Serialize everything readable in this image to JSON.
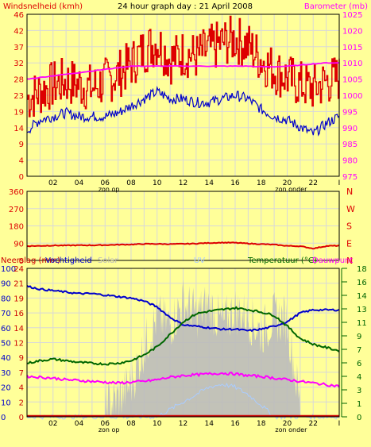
{
  "header": {
    "left_title": "Windsnelheid (kmh)",
    "center_title": "24 hour graph day : 21 April 2008",
    "right_title": "Barometer (mb)"
  },
  "colors": {
    "background": "#ffff99",
    "grid": "#d8d8d8",
    "wind": "#dd0000",
    "gust": "#0000cc",
    "barometer": "#ff00ff",
    "wind_direction": "#dd0000",
    "humidity": "#0000cc",
    "temperature": "#006600",
    "dewpoint": "#ff00ff",
    "solar": "#bbbbbb",
    "uv": "#aaccff",
    "rain": "#cc0000",
    "axis_green": "#006600",
    "direction_letters": "#dd0000"
  },
  "x_axis": {
    "ticks": [
      "02",
      "04",
      "06",
      "08",
      "10",
      "12",
      "14",
      "16",
      "18",
      "20",
      "22",
      "I"
    ],
    "zon_op": "zon op",
    "zon_onder": "zon onder"
  },
  "chart_data": [
    {
      "type": "line",
      "title": "Windsnelheid (kmh) / Barometer (mb)",
      "left_axis": {
        "label": "Windsnelheid (kmh)",
        "ticks": [
          "0",
          "4",
          "9",
          "14",
          "19",
          "23",
          "28",
          "32",
          "37",
          "42",
          "46"
        ],
        "ylim": [
          0,
          46
        ]
      },
      "right_axis": {
        "label": "Barometer (mb)",
        "ticks": [
          "975",
          "980",
          "985",
          "990",
          "995",
          "1000",
          "1005",
          "1010",
          "1015",
          "1020",
          "1025"
        ],
        "ylim": [
          975,
          1025
        ]
      },
      "x": [
        0,
        1,
        2,
        3,
        4,
        5,
        6,
        7,
        8,
        9,
        10,
        11,
        12,
        13,
        14,
        15,
        16,
        17,
        18,
        19,
        20,
        21,
        22,
        23,
        24
      ],
      "series": [
        {
          "name": "Windsnelheid",
          "axis": "left",
          "values": [
            22,
            24,
            26,
            27,
            26,
            25,
            27,
            29,
            32,
            36,
            38,
            33,
            35,
            34,
            36,
            38,
            39,
            37,
            33,
            30,
            28,
            26,
            25,
            27,
            28
          ]
        },
        {
          "name": "",
          "axis": "left",
          "values": [
            13,
            16,
            17,
            18,
            17,
            17,
            17,
            18,
            20,
            22,
            24,
            22,
            22,
            21,
            21,
            22,
            23,
            22,
            19,
            17,
            16,
            14,
            12,
            15,
            17
          ]
        },
        {
          "name": "Barometer",
          "axis": "right",
          "values": [
            1005,
            1005.5,
            1006,
            1006.5,
            1007,
            1007.5,
            1008,
            1008.5,
            1009,
            1009,
            1009,
            1009,
            1009,
            1009,
            1009,
            1009,
            1009,
            1009,
            1008.8,
            1008.8,
            1009,
            1009.3,
            1009.7,
            1010,
            1010
          ]
        }
      ]
    },
    {
      "type": "line",
      "title": "",
      "left_axis": {
        "ticks": [
          "0",
          "90",
          "180",
          "270",
          "360"
        ],
        "ylim": [
          0,
          360
        ]
      },
      "right_axis": {
        "ticks": [
          "N",
          "E",
          "S",
          "W",
          "N"
        ]
      },
      "x": [
        0,
        1,
        2,
        3,
        4,
        5,
        6,
        7,
        8,
        9,
        10,
        11,
        12,
        13,
        14,
        15,
        16,
        17,
        18,
        19,
        20,
        21,
        22,
        23,
        24
      ],
      "series": [
        {
          "name": "",
          "values": [
            75,
            76,
            78,
            78,
            79,
            79,
            80,
            82,
            83,
            86,
            86,
            85,
            86,
            88,
            91,
            93,
            92,
            88,
            85,
            82,
            76,
            74,
            62,
            75,
            77
          ]
        }
      ]
    },
    {
      "type": "line",
      "title": "",
      "labels": {
        "rain": "Neerslag (mm)",
        "humidity": "Vochtigheid",
        "solar": "Solar",
        "uv": "UV",
        "temperature": "Temperatuur (°C)",
        "dewpoint": "Dauwpunt"
      },
      "left_axis_humidity": {
        "ticks": [
          "0",
          "10",
          "20",
          "30",
          "40",
          "50",
          "60",
          "70",
          "80",
          "90",
          "100"
        ],
        "ylim": [
          0,
          100
        ]
      },
      "left_axis_rain": {
        "ticks": [
          "0",
          "2",
          "4",
          "7",
          "9",
          "12",
          "14",
          "16",
          "19",
          "21",
          "24"
        ]
      },
      "right_axis_temperature": {
        "ticks": [
          "0",
          "1",
          "3",
          "4",
          "6",
          "7",
          "9",
          "11",
          "13",
          "14",
          "16",
          "18"
        ],
        "ylim": [
          0,
          18
        ]
      },
      "x": [
        0,
        1,
        2,
        3,
        4,
        5,
        6,
        7,
        8,
        9,
        10,
        11,
        12,
        13,
        14,
        15,
        16,
        17,
        18,
        19,
        20,
        21,
        22,
        23,
        24
      ],
      "series": [
        {
          "name": "Vochtigheid",
          "axis": "left",
          "values": [
            88,
            86,
            85,
            84,
            83,
            83,
            82,
            81,
            80,
            78,
            74,
            67,
            62,
            61,
            60,
            59,
            59,
            58,
            59,
            61,
            64,
            70,
            72,
            72,
            72
          ]
        },
        {
          "name": "Temperatuur",
          "axis": "right",
          "values": [
            6.5,
            6.8,
            7.0,
            6.8,
            6.6,
            6.5,
            6.4,
            6.5,
            6.8,
            7.5,
            8.5,
            10,
            11.5,
            12.5,
            12.8,
            13,
            13.2,
            13,
            12.7,
            12.3,
            11,
            9.5,
            8.8,
            8.4,
            8.0
          ]
        },
        {
          "name": "Dauwpunt",
          "axis": "right",
          "values": [
            4.9,
            4.8,
            4.7,
            4.5,
            4.4,
            4.3,
            4.2,
            4.1,
            4.2,
            4.3,
            4.5,
            4.8,
            5.0,
            5.1,
            5.2,
            5.3,
            5.2,
            5.0,
            4.9,
            4.7,
            4.5,
            4.3,
            4.1,
            3.9,
            3.7
          ]
        },
        {
          "name": "Solar",
          "axis": "left",
          "values": [
            0,
            0,
            0,
            0,
            0,
            0,
            0,
            5,
            15,
            40,
            60,
            55,
            70,
            62,
            68,
            55,
            65,
            60,
            50,
            60,
            58,
            0,
            0,
            0,
            0
          ]
        },
        {
          "name": "UV",
          "axis": "left",
          "values": [
            0,
            0,
            0,
            0,
            0,
            0,
            0,
            0,
            0,
            0,
            0,
            5,
            10,
            15,
            20,
            22,
            20,
            15,
            8,
            0,
            0,
            0,
            0,
            0,
            0
          ]
        },
        {
          "name": "Neerslag",
          "axis": "left",
          "values": [
            0,
            0,
            0,
            0,
            0,
            0,
            0,
            0,
            0,
            0,
            0,
            0,
            0,
            0,
            0,
            0,
            0,
            0,
            0,
            0,
            0,
            0,
            0,
            0,
            0
          ]
        }
      ]
    }
  ]
}
